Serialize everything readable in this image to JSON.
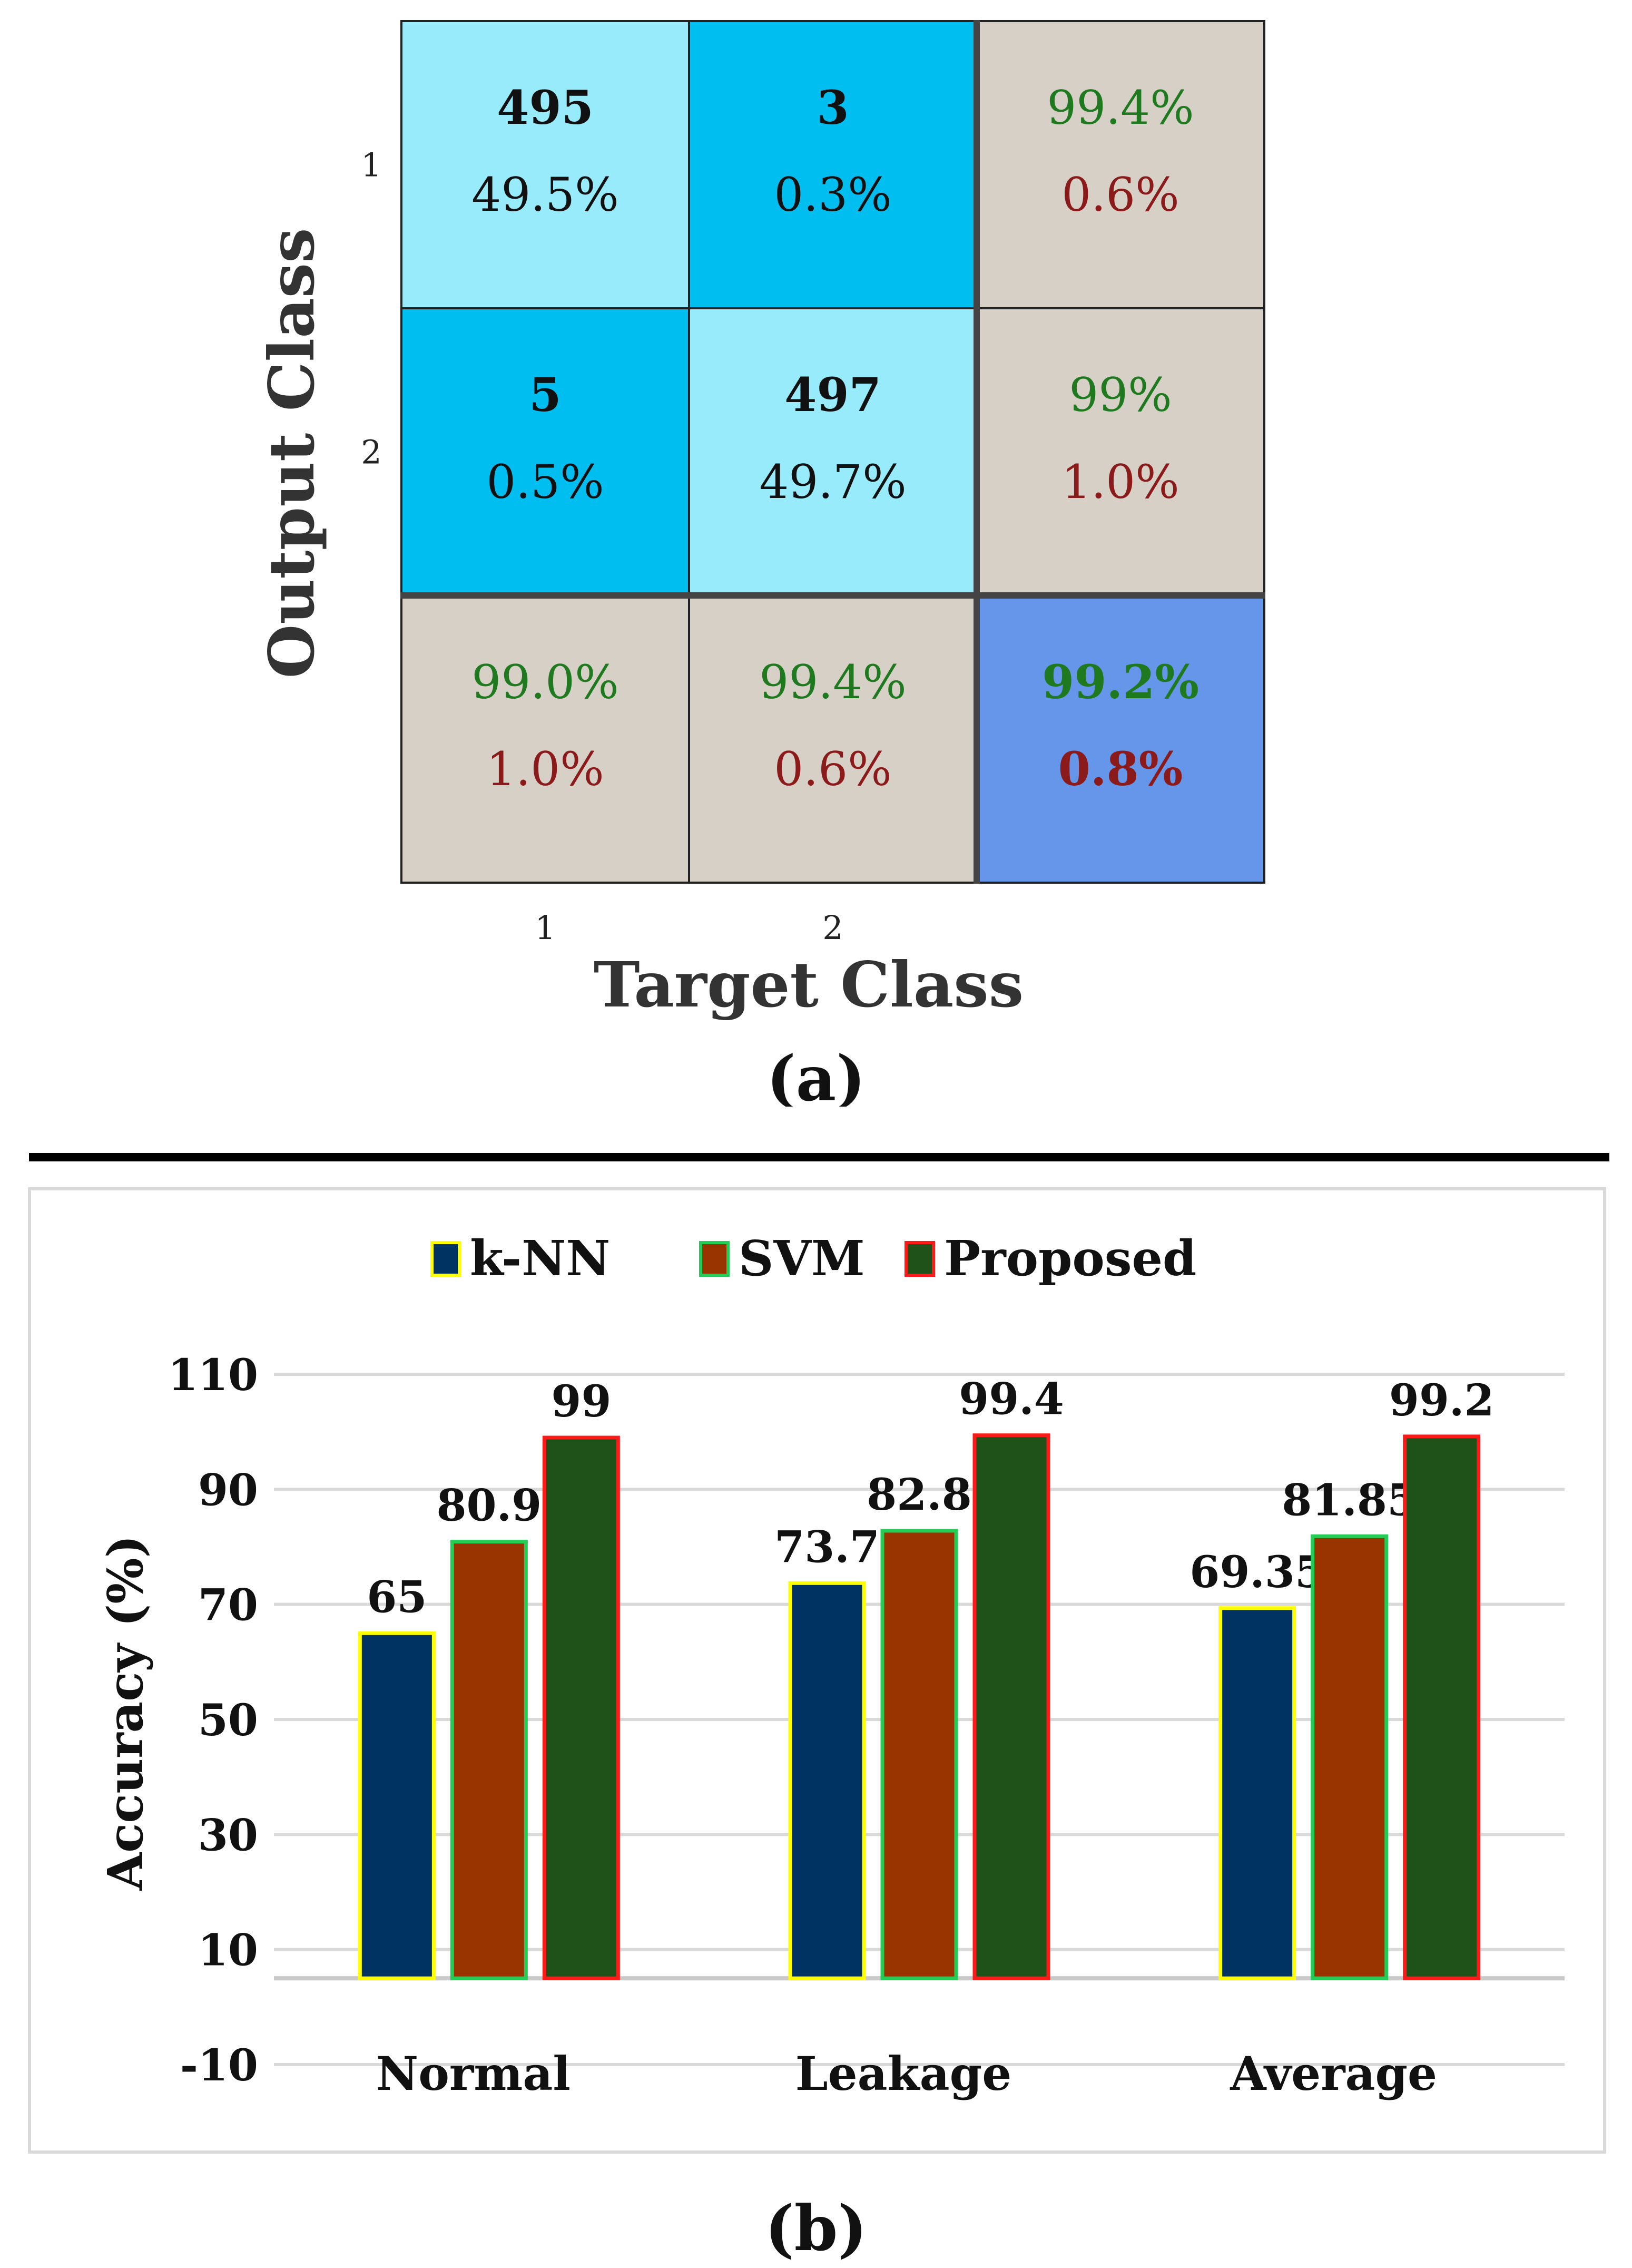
{
  "confusion_matrix": {
    "cells": [
      [
        {
          "count": "495",
          "pct": "49.5%"
        },
        {
          "count": "3",
          "pct": "0.3%"
        },
        {
          "top": "99.4%",
          "bottom": "0.6%"
        }
      ],
      [
        {
          "count": "5",
          "pct": "0.5%"
        },
        {
          "count": "497",
          "pct": "49.7%"
        },
        {
          "top": "99%",
          "bottom": "1.0%"
        }
      ],
      [
        {
          "top": "99.0%",
          "bottom": "1.0%"
        },
        {
          "top": "99.4%",
          "bottom": "0.6%"
        },
        {
          "top": "99.2%",
          "bottom": "0.8%"
        }
      ]
    ],
    "row_labels": [
      "1",
      "2"
    ],
    "col_labels": [
      "1",
      "2"
    ],
    "ylabel": "Output Class",
    "xlabel": "Target Class",
    "caption": "(a)",
    "colors": {
      "diag": "#98ebfb",
      "offdiag": "#00bff0",
      "summary": "#d7d0c6",
      "overall": "#6596ea",
      "good": "#1f7a1f",
      "bad": "#8b1a1a"
    }
  },
  "chart_data": {
    "type": "bar",
    "categories": [
      "Normal",
      "Leakage",
      "Average"
    ],
    "series": [
      {
        "name": "k-NN",
        "values": [
          65,
          73.7,
          69.35
        ],
        "labels": [
          "65",
          "73.7",
          "69.35"
        ],
        "fill": "#003262",
        "stroke": "#ffff00"
      },
      {
        "name": "SVM",
        "values": [
          80.9,
          82.8,
          81.85
        ],
        "labels": [
          "80.9",
          "82.8",
          "81.85"
        ],
        "fill": "#993300",
        "stroke": "#22cc55"
      },
      {
        "name": "Proposed",
        "values": [
          99,
          99.4,
          99.2
        ],
        "labels": [
          "99",
          "99.4",
          "99.2"
        ],
        "fill": "#1f5219",
        "stroke": "#ff1a1a"
      }
    ],
    "ylabel": "Accuracy (%)",
    "ylim": [
      -10,
      110
    ],
    "yticks": [
      -10,
      10,
      30,
      50,
      70,
      90,
      110
    ],
    "baseline": 5,
    "grid": true,
    "legend": "top-center",
    "caption": "(b)"
  }
}
